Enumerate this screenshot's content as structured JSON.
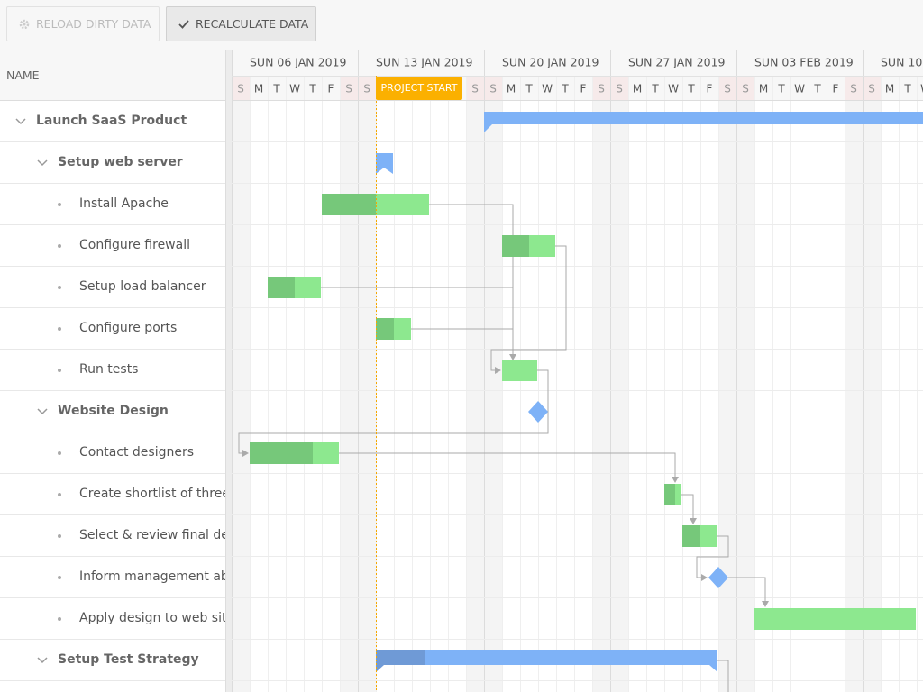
{
  "toolbar": {
    "buttons": [
      {
        "label": "RELOAD DIRTY DATA",
        "disabled": true
      },
      {
        "label": "RECALCULATE DATA",
        "disabled": false
      }
    ]
  },
  "grid": {
    "column_header": "NAME",
    "rows": [
      {
        "name": "Launch SaaS Product",
        "level": 0,
        "expandable": true
      },
      {
        "name": "Setup web server",
        "level": 1,
        "expandable": true
      },
      {
        "name": "Install Apache",
        "level": 2,
        "expandable": false
      },
      {
        "name": "Configure firewall",
        "level": 2,
        "expandable": false
      },
      {
        "name": "Setup load balancer",
        "level": 2,
        "expandable": false
      },
      {
        "name": "Configure ports",
        "level": 2,
        "expandable": false
      },
      {
        "name": "Run tests",
        "level": 2,
        "expandable": false
      },
      {
        "name": "Website Design",
        "level": 1,
        "expandable": true
      },
      {
        "name": "Contact designers",
        "level": 2,
        "expandable": false
      },
      {
        "name": "Create shortlist of three designers",
        "level": 2,
        "expandable": false
      },
      {
        "name": "Select & review final design",
        "level": 2,
        "expandable": false
      },
      {
        "name": "Inform management about decision",
        "level": 2,
        "expandable": false
      },
      {
        "name": "Apply design to web site",
        "level": 2,
        "expandable": false
      },
      {
        "name": "Setup Test Strategy",
        "level": 1,
        "expandable": true
      }
    ]
  },
  "timeline": {
    "weeks": [
      "SUN 06 JAN 2019",
      "SUN 13 JAN 2019",
      "SUN 20 JAN 2019",
      "SUN 27 JAN 2019",
      "SUN 03 FEB 2019",
      "SUN 10"
    ],
    "day_initials": [
      "S",
      "M",
      "T",
      "W",
      "T",
      "F",
      "S"
    ],
    "project_start_label": "PROJECT START"
  }
}
